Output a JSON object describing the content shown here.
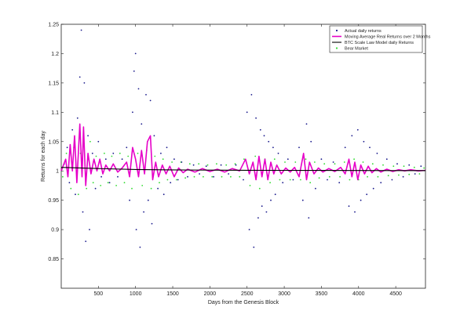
{
  "chart_data": {
    "type": "scatter",
    "title": "",
    "xlabel": "Days from the Genesis Block",
    "ylabel": "Returns for each day",
    "xlim": [
      0,
      4900
    ],
    "ylim": [
      0.8,
      1.25
    ],
    "x_ticks": [
      500,
      1000,
      1500,
      2000,
      2500,
      3000,
      3500,
      4000,
      4500
    ],
    "x_tick_labels": [
      "500",
      "1000",
      "1500",
      "2000",
      "2500",
      "3000",
      "3500",
      "4000",
      "4500"
    ],
    "y_ticks": [
      0.85,
      0.9,
      0.95,
      1.0,
      1.05,
      1.1,
      1.15,
      1.2,
      1.25
    ],
    "y_tick_labels": [
      "0.85",
      "0.9",
      "0.95",
      "1",
      "1.05",
      "1.1",
      "1.15",
      "1.2",
      "1.25"
    ],
    "grid": false,
    "legend_position": "top-right",
    "series": [
      {
        "name": "Actual daily returns",
        "kind": "scatter",
        "color": "#1a1a8c",
        "points": [
          [
            40,
            1.012
          ],
          [
            80,
            1.04
          ],
          [
            110,
            0.98
          ],
          [
            150,
            1.07
          ],
          [
            190,
            0.96
          ],
          [
            220,
            1.09
          ],
          [
            250,
            1.16
          ],
          [
            270,
            1.24
          ],
          [
            290,
            0.93
          ],
          [
            310,
            1.15
          ],
          [
            330,
            0.88
          ],
          [
            360,
            1.06
          ],
          [
            380,
            0.9
          ],
          [
            420,
            1.03
          ],
          [
            460,
            0.97
          ],
          [
            500,
            1.05
          ],
          [
            540,
            0.99
          ],
          [
            600,
            1.02
          ],
          [
            650,
            0.98
          ],
          [
            700,
            1.03
          ],
          [
            760,
            0.99
          ],
          [
            820,
            1.02
          ],
          [
            880,
            1.04
          ],
          [
            920,
            0.95
          ],
          [
            960,
            1.1
          ],
          [
            980,
            1.17
          ],
          [
            1000,
            1.2
          ],
          [
            1010,
            0.9
          ],
          [
            1040,
            1.14
          ],
          [
            1060,
            0.87
          ],
          [
            1080,
            1.08
          ],
          [
            1110,
            0.93
          ],
          [
            1140,
            1.13
          ],
          [
            1170,
            0.95
          ],
          [
            1200,
            1.12
          ],
          [
            1220,
            0.91
          ],
          [
            1250,
            1.06
          ],
          [
            1300,
            0.97
          ],
          [
            1340,
            1.03
          ],
          [
            1380,
            0.96
          ],
          [
            1420,
            1.04
          ],
          [
            1470,
            0.98
          ],
          [
            1520,
            1.02
          ],
          [
            1570,
            0.985
          ],
          [
            1620,
            1.015
          ],
          [
            1700,
            0.99
          ],
          [
            1780,
            1.01
          ],
          [
            1860,
            0.995
          ],
          [
            1950,
            1.008
          ],
          [
            2050,
            0.99
          ],
          [
            2150,
            1.01
          ],
          [
            2250,
            0.995
          ],
          [
            2350,
            1.01
          ],
          [
            2450,
            0.985
          ],
          [
            2500,
            1.1
          ],
          [
            2530,
            0.9
          ],
          [
            2560,
            1.13
          ],
          [
            2590,
            0.87
          ],
          [
            2620,
            1.09
          ],
          [
            2650,
            0.92
          ],
          [
            2680,
            1.07
          ],
          [
            2700,
            0.94
          ],
          [
            2730,
            1.06
          ],
          [
            2760,
            0.93
          ],
          [
            2790,
            1.05
          ],
          [
            2820,
            0.95
          ],
          [
            2850,
            1.04
          ],
          [
            2880,
            0.96
          ],
          [
            2920,
            1.03
          ],
          [
            2980,
            0.98
          ],
          [
            3050,
            1.02
          ],
          [
            3120,
            0.985
          ],
          [
            3200,
            1.04
          ],
          [
            3250,
            0.95
          ],
          [
            3300,
            1.08
          ],
          [
            3330,
            0.92
          ],
          [
            3360,
            1.05
          ],
          [
            3420,
            0.97
          ],
          [
            3500,
            1.02
          ],
          [
            3580,
            0.985
          ],
          [
            3660,
            1.015
          ],
          [
            3740,
            0.98
          ],
          [
            3820,
            1.04
          ],
          [
            3870,
            0.94
          ],
          [
            3910,
            1.06
          ],
          [
            3950,
            0.93
          ],
          [
            3990,
            1.07
          ],
          [
            4030,
            0.95
          ],
          [
            4070,
            1.05
          ],
          [
            4110,
            0.96
          ],
          [
            4150,
            1.04
          ],
          [
            4200,
            0.97
          ],
          [
            4250,
            1.03
          ],
          [
            4300,
            0.98
          ],
          [
            4380,
            1.02
          ],
          [
            4450,
            0.985
          ],
          [
            4520,
            1.012
          ],
          [
            4600,
            0.99
          ],
          [
            4680,
            1.01
          ],
          [
            4760,
            0.995
          ],
          [
            4840,
            1.008
          ]
        ]
      },
      {
        "name": "Moving Average Real Returns over 2 Months",
        "kind": "line",
        "color": "#e600c8",
        "points": [
          [
            0,
            1.0
          ],
          [
            60,
            1.02
          ],
          [
            90,
            0.99
          ],
          [
            120,
            1.045
          ],
          [
            150,
            1.0
          ],
          [
            180,
            1.06
          ],
          [
            210,
            0.98
          ],
          [
            250,
            1.08
          ],
          [
            280,
            0.99
          ],
          [
            300,
            1.075
          ],
          [
            330,
            0.975
          ],
          [
            360,
            1.03
          ],
          [
            400,
            0.995
          ],
          [
            440,
            1.02
          ],
          [
            480,
            1.0
          ],
          [
            520,
            1.02
          ],
          [
            560,
            0.995
          ],
          [
            600,
            1.01
          ],
          [
            650,
            1.0
          ],
          [
            700,
            1.012
          ],
          [
            760,
            0.998
          ],
          [
            820,
            1.005
          ],
          [
            880,
            1.015
          ],
          [
            920,
            0.99
          ],
          [
            960,
            1.04
          ],
          [
            1000,
            1.02
          ],
          [
            1040,
            0.99
          ],
          [
            1080,
            1.035
          ],
          [
            1120,
            0.995
          ],
          [
            1160,
            1.05
          ],
          [
            1200,
            1.06
          ],
          [
            1230,
            0.985
          ],
          [
            1270,
            1.015
          ],
          [
            1310,
            0.99
          ],
          [
            1360,
            1.01
          ],
          [
            1410,
            0.995
          ],
          [
            1460,
            1.008
          ],
          [
            1520,
            0.99
          ],
          [
            1580,
            1.005
          ],
          [
            1640,
            0.997
          ],
          [
            1700,
            1.003
          ],
          [
            1800,
            0.998
          ],
          [
            1900,
            1.004
          ],
          [
            2000,
            0.999
          ],
          [
            2100,
            1.003
          ],
          [
            2200,
            0.998
          ],
          [
            2300,
            1.004
          ],
          [
            2400,
            1.0
          ],
          [
            2480,
            1.02
          ],
          [
            2530,
            0.995
          ],
          [
            2580,
            1.015
          ],
          [
            2620,
            0.985
          ],
          [
            2660,
            1.025
          ],
          [
            2700,
            0.99
          ],
          [
            2740,
            1.02
          ],
          [
            2780,
            0.985
          ],
          [
            2820,
            1.015
          ],
          [
            2860,
            0.995
          ],
          [
            2900,
            1.01
          ],
          [
            2960,
            0.995
          ],
          [
            3020,
            1.005
          ],
          [
            3080,
            0.998
          ],
          [
            3140,
            1.006
          ],
          [
            3200,
            0.99
          ],
          [
            3260,
            1.03
          ],
          [
            3300,
            0.985
          ],
          [
            3340,
            1.015
          ],
          [
            3400,
            0.995
          ],
          [
            3460,
            1.005
          ],
          [
            3520,
            0.998
          ],
          [
            3600,
            1.004
          ],
          [
            3680,
            0.999
          ],
          [
            3760,
            1.006
          ],
          [
            3820,
            0.995
          ],
          [
            3870,
            1.02
          ],
          [
            3910,
            0.99
          ],
          [
            3950,
            1.015
          ],
          [
            3990,
            0.985
          ],
          [
            4030,
            1.01
          ],
          [
            4080,
            0.995
          ],
          [
            4130,
            1.008
          ],
          [
            4180,
            0.997
          ],
          [
            4240,
            1.004
          ],
          [
            4300,
            0.998
          ],
          [
            4380,
            1.003
          ],
          [
            4460,
            0.999
          ],
          [
            4540,
            1.002
          ],
          [
            4620,
            1.0
          ],
          [
            4700,
            1.002
          ],
          [
            4800,
            1.0
          ],
          [
            4900,
            1.001
          ]
        ]
      },
      {
        "name": "BTC Scale Law Model daily Returns",
        "kind": "line",
        "color": "#000000",
        "points": [
          [
            0,
            1.006
          ],
          [
            500,
            1.004
          ],
          [
            1000,
            1.0025
          ],
          [
            1500,
            1.0018
          ],
          [
            2000,
            1.0014
          ],
          [
            2500,
            1.0011
          ],
          [
            3000,
            1.0009
          ],
          [
            3500,
            1.0008
          ],
          [
            4000,
            1.0007
          ],
          [
            4500,
            1.0006
          ],
          [
            4900,
            1.0005
          ]
        ]
      },
      {
        "name": "Bear Market",
        "kind": "scatter",
        "color": "#33dd33",
        "points": [
          [
            20,
            0.99
          ],
          [
            70,
            1.03
          ],
          [
            130,
            0.97
          ],
          [
            170,
            1.04
          ],
          [
            230,
            0.96
          ],
          [
            260,
            1.03
          ],
          [
            340,
            0.97
          ],
          [
            390,
            1.05
          ],
          [
            430,
            0.98
          ],
          [
            470,
            1.025
          ],
          [
            530,
            0.975
          ],
          [
            580,
            1.03
          ],
          [
            630,
            0.98
          ],
          [
            680,
            1.025
          ],
          [
            740,
            0.975
          ],
          [
            790,
            1.03
          ],
          [
            850,
            0.98
          ],
          [
            900,
            1.025
          ],
          [
            950,
            0.97
          ],
          [
            1030,
            1.03
          ],
          [
            1090,
            0.975
          ],
          [
            1150,
            1.035
          ],
          [
            1210,
            0.97
          ],
          [
            1260,
            1.025
          ],
          [
            1320,
            0.98
          ],
          [
            1370,
            1.02
          ],
          [
            1430,
            0.985
          ],
          [
            1490,
            1.015
          ],
          [
            1550,
            0.985
          ],
          [
            1610,
            1.015
          ],
          [
            1670,
            0.988
          ],
          [
            1730,
            1.012
          ],
          [
            1790,
            0.99
          ],
          [
            1850,
            1.012
          ],
          [
            1910,
            0.99
          ],
          [
            1970,
            1.01
          ],
          [
            2030,
            0.99
          ],
          [
            2090,
            1.012
          ],
          [
            2160,
            0.99
          ],
          [
            2220,
            1.01
          ],
          [
            2280,
            0.99
          ],
          [
            2340,
            1.012
          ],
          [
            2400,
            0.99
          ],
          [
            2460,
            1.02
          ],
          [
            2540,
            0.975
          ],
          [
            2610,
            1.025
          ],
          [
            2670,
            0.97
          ],
          [
            2740,
            1.02
          ],
          [
            2810,
            0.98
          ],
          [
            2870,
            1.02
          ],
          [
            2940,
            0.985
          ],
          [
            3010,
            1.015
          ],
          [
            3080,
            0.985
          ],
          [
            3150,
            1.015
          ],
          [
            3220,
            0.985
          ],
          [
            3290,
            1.02
          ],
          [
            3350,
            0.98
          ],
          [
            3410,
            1.015
          ],
          [
            3470,
            0.988
          ],
          [
            3540,
            1.012
          ],
          [
            3610,
            0.99
          ],
          [
            3680,
            1.012
          ],
          [
            3750,
            0.99
          ],
          [
            3810,
            1.015
          ],
          [
            3880,
            0.985
          ],
          [
            3940,
            1.02
          ],
          [
            4000,
            0.985
          ],
          [
            4060,
            1.015
          ],
          [
            4120,
            0.99
          ],
          [
            4190,
            1.012
          ],
          [
            4260,
            0.99
          ],
          [
            4330,
            1.01
          ],
          [
            4400,
            0.992
          ],
          [
            4470,
            1.008
          ],
          [
            4540,
            0.993
          ],
          [
            4610,
            1.008
          ],
          [
            4680,
            0.994
          ],
          [
            4750,
            1.006
          ],
          [
            4820,
            0.995
          ],
          [
            4880,
            1.005
          ]
        ]
      }
    ]
  }
}
